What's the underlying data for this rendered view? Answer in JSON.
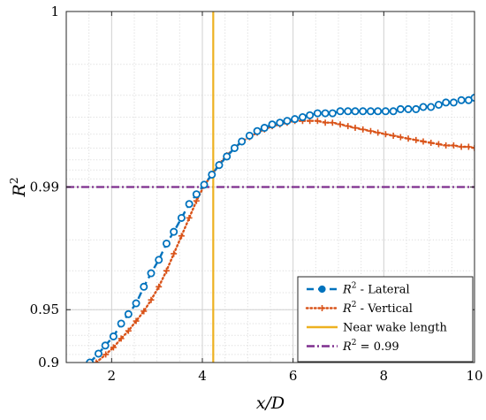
{
  "chart_data": {
    "type": "line",
    "xlabel": "x/D",
    "ylabel": "R²",
    "xlim": [
      1,
      10
    ],
    "ylim": [
      0.9,
      1.0
    ],
    "y_scale": "log(1 - y), inverted",
    "x_ticks": [
      2,
      4,
      6,
      8,
      10
    ],
    "x_tick_labels": [
      "2",
      "4",
      "6",
      "8",
      "10"
    ],
    "y_ticks": [
      0.9,
      0.95,
      0.99,
      1.0
    ],
    "y_tick_labels": [
      "0.9",
      "0.95",
      "0.99",
      "1"
    ],
    "grid": true,
    "minor_grid": true,
    "legend_position": "bottom-right",
    "series": [
      {
        "name": "R² - Lateral",
        "color": "#0072BD",
        "line_style": "dashed",
        "marker": "circle",
        "x": [
          1.52,
          1.71,
          1.86,
          2.04,
          2.21,
          2.37,
          2.54,
          2.71,
          2.87,
          3.04,
          3.21,
          3.37,
          3.54,
          3.71,
          3.87,
          4.04,
          4.21,
          4.37,
          4.54,
          4.71,
          4.87,
          5.04,
          5.21,
          5.37,
          5.54,
          5.71,
          5.87,
          6.04,
          6.21,
          6.37,
          6.54,
          6.71,
          6.87,
          7.04,
          7.21,
          7.37,
          7.54,
          7.71,
          7.87,
          8.04,
          8.21,
          8.37,
          8.54,
          8.71,
          8.87,
          9.04,
          9.21,
          9.37,
          9.54,
          9.71,
          9.87,
          10.0
        ],
        "y": [
          0.9,
          0.911,
          0.92,
          0.929,
          0.94,
          0.947,
          0.954,
          0.963,
          0.969,
          0.974,
          0.979,
          0.982,
          0.985,
          0.9875,
          0.989,
          0.9903,
          0.9915,
          0.9925,
          0.9933,
          0.994,
          0.9945,
          0.9949,
          0.9952,
          0.9954,
          0.9956,
          0.9957,
          0.9958,
          0.9959,
          0.996,
          0.9961,
          0.9962,
          0.9962,
          0.9962,
          0.9963,
          0.9963,
          0.9963,
          0.9963,
          0.9963,
          0.9963,
          0.9963,
          0.9963,
          0.9964,
          0.9964,
          0.9964,
          0.9965,
          0.9965,
          0.9966,
          0.9967,
          0.9967,
          0.9968,
          0.9968,
          0.9969
        ]
      },
      {
        "name": "R² - Vertical",
        "color": "#D95319",
        "line_style": "dotted",
        "marker": "plus",
        "x": [
          1.66,
          1.87,
          2.04,
          2.21,
          2.37,
          2.54,
          2.71,
          2.87,
          3.04,
          3.21,
          3.37,
          3.54,
          3.71,
          3.87,
          4.04,
          4.21,
          4.37,
          4.54,
          4.71,
          4.87,
          5.04,
          5.21,
          5.37,
          5.54,
          5.71,
          5.87,
          6.04,
          6.21,
          6.37,
          6.54,
          6.71,
          6.87,
          7.04,
          7.21,
          7.37,
          7.54,
          7.71,
          7.87,
          8.04,
          8.21,
          8.37,
          8.54,
          8.71,
          8.87,
          9.04,
          9.21,
          9.37,
          9.54,
          9.71,
          9.87,
          10.0
        ],
        "y": [
          0.9,
          0.91,
          0.918,
          0.927,
          0.934,
          0.942,
          0.949,
          0.956,
          0.963,
          0.97,
          0.976,
          0.981,
          0.985,
          0.988,
          0.9902,
          0.9915,
          0.9926,
          0.9934,
          0.994,
          0.9945,
          0.9948,
          0.9951,
          0.9953,
          0.9955,
          0.9956,
          0.9957,
          0.9958,
          0.9958,
          0.9958,
          0.9958,
          0.9957,
          0.9957,
          0.9956,
          0.9955,
          0.9954,
          0.9953,
          0.9952,
          0.9951,
          0.995,
          0.9949,
          0.9948,
          0.9947,
          0.9946,
          0.9945,
          0.9944,
          0.9943,
          0.9942,
          0.9942,
          0.9941,
          0.9941,
          0.994
        ]
      }
    ],
    "vertical_line": {
      "name": "Near wake length",
      "x": 4.24,
      "color": "#EDB120"
    },
    "horizontal_line": {
      "name": "R² = 0.99",
      "y": 0.99,
      "color": "#7E2F8E"
    },
    "legend": {
      "entries": [
        {
          "base": "R",
          "sup": "2",
          "rest": " - Lateral"
        },
        {
          "base": "R",
          "sup": "2",
          "rest": " - Vertical"
        },
        {
          "base": "",
          "sup": "",
          "rest": "Near wake length"
        },
        {
          "base": "R",
          "sup": "2",
          "rest": " = 0.99"
        }
      ]
    }
  }
}
